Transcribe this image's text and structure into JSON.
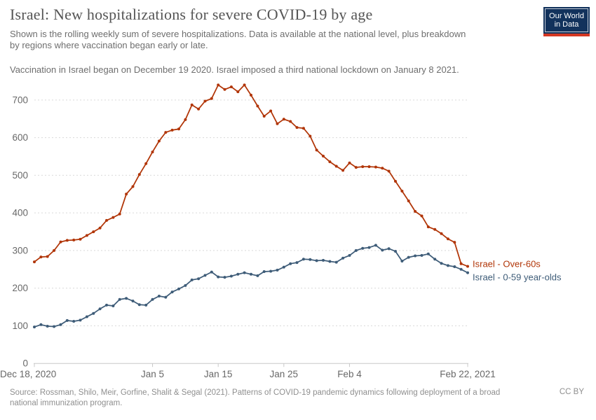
{
  "header": {
    "title": "Israel: New hospitalizations for severe COVID-19 by age",
    "subtitle_line1": "Shown is the rolling weekly sum of severe hospitalizations. Data is available at the national level, plus breakdown",
    "subtitle_line2": "by regions where vaccination began early or late.",
    "note": "Vaccination in Israel began on December 19 2020. Israel imposed a third national lockdown on January 8 2021."
  },
  "logo": {
    "line1": "Our World",
    "line2": "in Data"
  },
  "footer": {
    "source_line1": "Source: Rossman, Shilo, Meir, Gorfine, Shalit & Segal (2021). Patterns of COVID-19 pandemic dynamics following deployment of a broad",
    "source_line2": "national immunization program.",
    "license": "CC BY"
  },
  "chart_data": {
    "type": "line",
    "title": "Israel: New hospitalizations for severe COVID-19 by age",
    "x_unit": "day",
    "x_range_labels": [
      "Dec 18, 2020",
      "Feb 22, 2021"
    ],
    "ylim": [
      0,
      750
    ],
    "yticks": [
      0,
      100,
      200,
      300,
      400,
      500,
      600,
      700
    ],
    "xticks": [
      {
        "label": "Dec 18, 2020",
        "day": 0
      },
      {
        "label": "Jan 5",
        "day": 18
      },
      {
        "label": "Jan 15",
        "day": 28
      },
      {
        "label": "Jan 25",
        "day": 38
      },
      {
        "label": "Feb 4",
        "day": 48
      },
      {
        "label": "Feb 22, 2021",
        "day": 66
      }
    ],
    "grid": "horizontal-dashed",
    "legend": "end-of-line-labels",
    "series": [
      {
        "name": "Israel - Over-60s",
        "color": "#b13507",
        "label_dy": 1,
        "values": [
          270,
          283,
          284,
          300,
          323,
          327,
          328,
          330,
          340,
          350,
          360,
          380,
          388,
          397,
          450,
          470,
          502,
          531,
          562,
          591,
          614,
          620,
          623,
          648,
          687,
          676,
          697,
          704,
          740,
          728,
          735,
          722,
          740,
          713,
          684,
          657,
          671,
          637,
          649,
          643,
          627,
          625,
          604,
          567,
          551,
          536,
          524,
          513,
          533,
          521,
          523,
          523,
          522,
          519,
          511,
          484,
          458,
          432,
          404,
          392,
          363,
          356,
          345,
          331,
          322,
          265,
          258
        ]
      },
      {
        "name": "Israel - 0-59 year-olds",
        "color": "#3e5c78",
        "label_dy": 11,
        "values": [
          97,
          103,
          99,
          98,
          103,
          114,
          112,
          115,
          124,
          133,
          145,
          155,
          153,
          170,
          173,
          166,
          156,
          155,
          170,
          179,
          176,
          190,
          198,
          207,
          222,
          225,
          234,
          243,
          230,
          229,
          232,
          237,
          241,
          237,
          233,
          244,
          245,
          248,
          256,
          265,
          268,
          277,
          276,
          273,
          274,
          271,
          269,
          280,
          287,
          300,
          306,
          308,
          314,
          301,
          305,
          298,
          272,
          282,
          286,
          287,
          291,
          277,
          266,
          260,
          257,
          250,
          241
        ]
      }
    ]
  }
}
